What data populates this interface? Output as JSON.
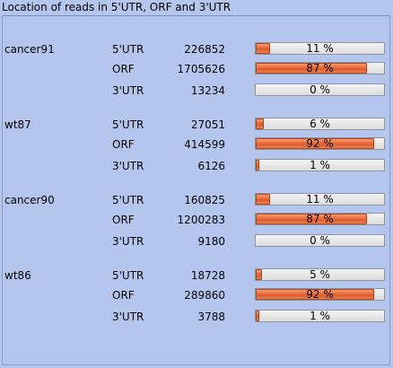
{
  "title": "Location of reads in 5'UTR, ORF and 3'UTR",
  "colors": {
    "background": "#b4c6ee",
    "bar_fill": "#ea6b3b",
    "bar_track": "#e6e6e6"
  },
  "samples": [
    {
      "name": "cancer91",
      "rows": [
        {
          "region": "5'UTR",
          "count": "226852",
          "percent": 11,
          "percent_label": "11 %"
        },
        {
          "region": "ORF",
          "count": "1705626",
          "percent": 87,
          "percent_label": "87 %"
        },
        {
          "region": "3'UTR",
          "count": "13234",
          "percent": 0,
          "percent_label": "0 %"
        }
      ]
    },
    {
      "name": "wt87",
      "rows": [
        {
          "region": "5'UTR",
          "count": "27051",
          "percent": 6,
          "percent_label": "6 %"
        },
        {
          "region": "ORF",
          "count": "414599",
          "percent": 92,
          "percent_label": "92 %"
        },
        {
          "region": "3'UTR",
          "count": "6126",
          "percent": 1,
          "percent_label": "1 %"
        }
      ]
    },
    {
      "name": "cancer90",
      "rows": [
        {
          "region": "5'UTR",
          "count": "160825",
          "percent": 11,
          "percent_label": "11 %"
        },
        {
          "region": "ORF",
          "count": "1200283",
          "percent": 87,
          "percent_label": "87 %"
        },
        {
          "region": "3'UTR",
          "count": "9180",
          "percent": 0,
          "percent_label": "0 %"
        }
      ]
    },
    {
      "name": "wt86",
      "rows": [
        {
          "region": "5'UTR",
          "count": "18728",
          "percent": 5,
          "percent_label": "5 %"
        },
        {
          "region": "ORF",
          "count": "289860",
          "percent": 92,
          "percent_label": "92 %"
        },
        {
          "region": "3'UTR",
          "count": "3788",
          "percent": 1,
          "percent_label": "1 %"
        }
      ]
    }
  ]
}
